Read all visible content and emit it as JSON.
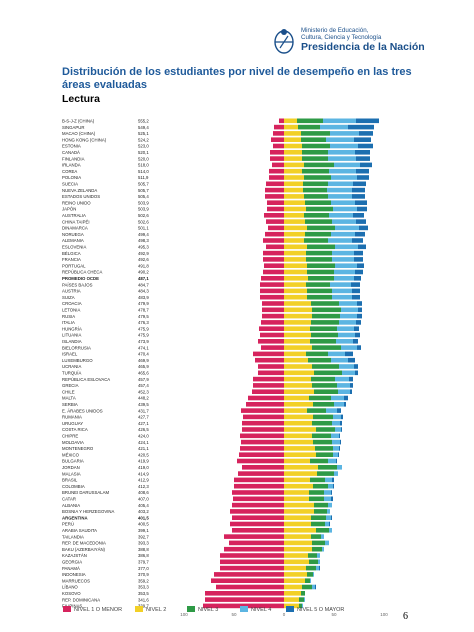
{
  "header": {
    "ministry_line1": "Ministerio de Educación,",
    "ministry_line2": "Cultura, Ciencia y Tecnología",
    "presidency": "Presidencia de la Nación"
  },
  "page_number": "6",
  "colors": {
    "nivel1": "#d6235d",
    "nivel2": "#f2d027",
    "nivel3": "#2e9a46",
    "nivel4": "#5cb5e2",
    "nivel5": "#1c6fb0",
    "highlight_label": "#000000"
  },
  "chart_data": {
    "type": "bar",
    "stacked": "diverging",
    "title": "Distribución de los estudiantes por nivel de desempeño en las tres áreas evaluadas",
    "subtitle": "Lectura",
    "xlim": [
      -100,
      100
    ],
    "x_ticks": [
      {
        "value": -100,
        "label": "100"
      },
      {
        "value": -50,
        "label": "50"
      },
      {
        "value": 0,
        "label": "0"
      },
      {
        "value": 50,
        "label": "50"
      },
      {
        "value": 100,
        "label": "100"
      }
    ],
    "legend": [
      "NIVEL 1 O MENOR",
      "NIVEL 2",
      "NIVEL 3",
      "NIVEL 4",
      "NIVEL 5 O MAYOR"
    ],
    "legend_position": "bottom",
    "rows": [
      {
        "country": "B-S-J-Z (CHINA)",
        "score": "555,2",
        "n1": 5,
        "n2": 13,
        "n3": 26,
        "n4": 33,
        "n5": 23
      },
      {
        "country": "SINGAPUR",
        "score": "549,4",
        "n1": 10,
        "n2": 14,
        "n3": 22,
        "n4": 28,
        "n5": 26
      },
      {
        "country": "MACAO (CHINA)",
        "score": "525,1",
        "n1": 11,
        "n2": 17,
        "n3": 29,
        "n4": 29,
        "n5": 14
      },
      {
        "country": "HONG KONG (CHINA)",
        "score": "524,2",
        "n1": 13,
        "n2": 17,
        "n3": 25,
        "n4": 28,
        "n5": 17
      },
      {
        "country": "ESTONIA",
        "score": "523,0",
        "n1": 11,
        "n2": 18,
        "n3": 28,
        "n4": 28,
        "n5": 15
      },
      {
        "country": "CANADÁ",
        "score": "520,1",
        "n1": 14,
        "n2": 18,
        "n3": 26,
        "n4": 27,
        "n5": 15
      },
      {
        "country": "FINLANDIA",
        "score": "520,0",
        "n1": 14,
        "n2": 18,
        "n3": 26,
        "n4": 28,
        "n5": 14
      },
      {
        "country": "IRLANDA",
        "score": "518,0",
        "n1": 12,
        "n2": 20,
        "n3": 30,
        "n4": 26,
        "n5": 12
      },
      {
        "country": "COREA",
        "score": "514,0",
        "n1": 15,
        "n2": 18,
        "n3": 27,
        "n4": 27,
        "n5": 13
      },
      {
        "country": "POLONIA",
        "score": "511,9",
        "n1": 15,
        "n2": 20,
        "n3": 27,
        "n4": 26,
        "n5": 12
      },
      {
        "country": "SUECIA",
        "score": "505,7",
        "n1": 18,
        "n2": 19,
        "n3": 25,
        "n4": 25,
        "n5": 13
      },
      {
        "country": "NUEVA ZELANDA",
        "score": "505,7",
        "n1": 19,
        "n2": 19,
        "n3": 24,
        "n4": 25,
        "n5": 13
      },
      {
        "country": "ESTADOS UNIDOS",
        "score": "505,4",
        "n1": 19,
        "n2": 20,
        "n3": 24,
        "n4": 24,
        "n5": 13
      },
      {
        "country": "REINO UNIDO",
        "score": "503,9",
        "n1": 17,
        "n2": 21,
        "n3": 26,
        "n4": 24,
        "n5": 12
      },
      {
        "country": "JAPÓN",
        "score": "503,9",
        "n1": 17,
        "n2": 22,
        "n3": 27,
        "n4": 24,
        "n5": 10
      },
      {
        "country": "AUSTRALIA",
        "score": "502,6",
        "n1": 20,
        "n2": 20,
        "n3": 25,
        "n4": 24,
        "n5": 11
      },
      {
        "country": "CHINA TAIPÉI",
        "score": "502,6",
        "n1": 18,
        "n2": 21,
        "n3": 27,
        "n4": 24,
        "n5": 10
      },
      {
        "country": "DINAMARCA",
        "score": "501,1",
        "n1": 16,
        "n2": 23,
        "n3": 28,
        "n4": 24,
        "n5": 9
      },
      {
        "country": "NORUEGA",
        "score": "499,4",
        "n1": 19,
        "n2": 21,
        "n3": 26,
        "n4": 24,
        "n5": 10
      },
      {
        "country": "ALEMANIA",
        "score": "498,3",
        "n1": 21,
        "n2": 20,
        "n3": 24,
        "n4": 24,
        "n5": 11
      },
      {
        "country": "ESLOVENIA",
        "score": "495,3",
        "n1": 18,
        "n2": 23,
        "n3": 28,
        "n4": 23,
        "n5": 8
      },
      {
        "country": "BÉLGICA",
        "score": "492,9",
        "n1": 21,
        "n2": 22,
        "n3": 26,
        "n4": 22,
        "n5": 9
      },
      {
        "country": "FRANCIA",
        "score": "492,6",
        "n1": 21,
        "n2": 22,
        "n3": 26,
        "n4": 22,
        "n5": 9
      },
      {
        "country": "PORTUGAL",
        "score": "491,8",
        "n1": 20,
        "n2": 23,
        "n3": 28,
        "n4": 22,
        "n5": 7
      },
      {
        "country": "REPÚBLICA CHECA",
        "score": "490,2",
        "n1": 21,
        "n2": 23,
        "n3": 27,
        "n4": 21,
        "n5": 8
      },
      {
        "country": "PROMEDIO OCDE",
        "score": "487,1",
        "n1": 23,
        "n2": 24,
        "n3": 26,
        "n4": 20,
        "n5": 7,
        "highlight": true
      },
      {
        "country": "PAÍSES BAJOS",
        "score": "484,7",
        "n1": 24,
        "n2": 22,
        "n3": 24,
        "n4": 21,
        "n5": 9
      },
      {
        "country": "AUSTRIA",
        "score": "484,3",
        "n1": 24,
        "n2": 23,
        "n3": 25,
        "n4": 20,
        "n5": 8
      },
      {
        "country": "SUIZA",
        "score": "483,9",
        "n1": 24,
        "n2": 23,
        "n3": 25,
        "n4": 20,
        "n5": 8
      },
      {
        "country": "CROACIA",
        "score": "479,9",
        "n1": 22,
        "n2": 27,
        "n3": 28,
        "n4": 18,
        "n5": 5
      },
      {
        "country": "LETONIA",
        "score": "478,7",
        "n1": 22,
        "n2": 28,
        "n3": 29,
        "n4": 17,
        "n5": 4
      },
      {
        "country": "RUSIA",
        "score": "479,5",
        "n1": 22,
        "n2": 28,
        "n3": 28,
        "n4": 17,
        "n5": 5
      },
      {
        "country": "ITALIA",
        "score": "476,3",
        "n1": 23,
        "n2": 27,
        "n3": 28,
        "n4": 17,
        "n5": 5
      },
      {
        "country": "HUNGRÍA",
        "score": "475,9",
        "n1": 25,
        "n2": 26,
        "n3": 27,
        "n4": 17,
        "n5": 5
      },
      {
        "country": "LITUANIA",
        "score": "475,9",
        "n1": 24,
        "n2": 27,
        "n3": 27,
        "n4": 17,
        "n5": 5
      },
      {
        "country": "ISLANDIA",
        "score": "473,9",
        "n1": 26,
        "n2": 26,
        "n3": 26,
        "n4": 17,
        "n5": 5
      },
      {
        "country": "BIELORRUSIA",
        "score": "474,1",
        "n1": 23,
        "n2": 28,
        "n3": 29,
        "n4": 16,
        "n5": 4
      },
      {
        "country": "ISRAEL",
        "score": "470,4",
        "n1": 31,
        "n2": 22,
        "n3": 22,
        "n4": 17,
        "n5": 8
      },
      {
        "country": "LUXEMBURGO",
        "score": "469,9",
        "n1": 29,
        "n2": 24,
        "n3": 23,
        "n4": 17,
        "n5": 7
      },
      {
        "country": "UCRANIA",
        "score": "465,9",
        "n1": 26,
        "n2": 28,
        "n3": 27,
        "n4": 15,
        "n5": 4
      },
      {
        "country": "TURQUÍA",
        "score": "465,6",
        "n1": 26,
        "n2": 30,
        "n3": 28,
        "n4": 13,
        "n5": 3
      },
      {
        "country": "REPÚBLICA ESLOVACA",
        "score": "457,9",
        "n1": 31,
        "n2": 27,
        "n3": 24,
        "n4": 14,
        "n5": 4
      },
      {
        "country": "GRECIA",
        "score": "457,4",
        "n1": 31,
        "n2": 28,
        "n3": 25,
        "n4": 13,
        "n5": 3
      },
      {
        "country": "CHILE",
        "score": "452,3",
        "n1": 32,
        "n2": 30,
        "n3": 24,
        "n4": 12,
        "n5": 2
      },
      {
        "country": "MALTA",
        "score": "448,2",
        "n1": 36,
        "n2": 25,
        "n3": 22,
        "n4": 13,
        "n5": 4
      },
      {
        "country": "SERBIA",
        "score": "439,5",
        "n1": 38,
        "n2": 29,
        "n3": 21,
        "n4": 10,
        "n5": 2
      },
      {
        "country": "E. ÁRABES UNIDOS",
        "score": "431,7",
        "n1": 43,
        "n2": 23,
        "n3": 19,
        "n4": 11,
        "n5": 4
      },
      {
        "country": "RUMANIA",
        "score": "427,7",
        "n1": 41,
        "n2": 29,
        "n3": 20,
        "n4": 8,
        "n5": 2
      },
      {
        "country": "URUGUAY",
        "score": "427,1",
        "n1": 42,
        "n2": 28,
        "n3": 20,
        "n4": 8,
        "n5": 2
      },
      {
        "country": "COSTA RICA",
        "score": "426,5",
        "n1": 42,
        "n2": 32,
        "n3": 19,
        "n4": 6,
        "n5": 1
      },
      {
        "country": "CHIPRE",
        "score": "424,0",
        "n1": 44,
        "n2": 28,
        "n3": 19,
        "n4": 8,
        "n5": 1
      },
      {
        "country": "MOLDAVIA",
        "score": "424,1",
        "n1": 43,
        "n2": 29,
        "n3": 19,
        "n4": 8,
        "n5": 1
      },
      {
        "country": "MONTENEGRO",
        "score": "421,1",
        "n1": 44,
        "n2": 31,
        "n3": 18,
        "n4": 6,
        "n5": 1
      },
      {
        "country": "MÉXICO",
        "score": "420,5",
        "n1": 45,
        "n2": 32,
        "n3": 17,
        "n4": 5,
        "n5": 1
      },
      {
        "country": "BULGARIA",
        "score": "419,9",
        "n1": 47,
        "n2": 26,
        "n3": 18,
        "n4": 8,
        "n5": 1
      },
      {
        "country": "JORDAN",
        "score": "419,0",
        "n1": 42,
        "n2": 34,
        "n3": 19,
        "n4": 5,
        "n5": 0
      },
      {
        "country": "MALASIA",
        "score": "414,9",
        "n1": 46,
        "n2": 33,
        "n3": 17,
        "n4": 4,
        "n5": 0
      },
      {
        "country": "BRASIL",
        "score": "412,9",
        "n1": 50,
        "n2": 26,
        "n3": 15,
        "n4": 7,
        "n5": 2
      },
      {
        "country": "COLOMBIA",
        "score": "412,3",
        "n1": 50,
        "n2": 29,
        "n3": 15,
        "n4": 5,
        "n5": 1
      },
      {
        "country": "BRUNEI DARUSSALAM",
        "score": "408,6",
        "n1": 52,
        "n2": 25,
        "n3": 15,
        "n4": 7,
        "n5": 1
      },
      {
        "country": "CATAR",
        "score": "407,0",
        "n1": 51,
        "n2": 25,
        "n3": 15,
        "n4": 7,
        "n5": 2
      },
      {
        "country": "ALBANIA",
        "score": "405,4",
        "n1": 52,
        "n2": 30,
        "n3": 14,
        "n4": 4,
        "n5": 0
      },
      {
        "country": "BOSNIA Y HERZEGOVINA",
        "score": "403,2",
        "n1": 54,
        "n2": 30,
        "n3": 13,
        "n4": 3,
        "n5": 0
      },
      {
        "country": "ARGENTINA",
        "score": "401,5",
        "n1": 52,
        "n2": 27,
        "n3": 15,
        "n4": 5,
        "n5": 1,
        "highlight": true
      },
      {
        "country": "PERÚ",
        "score": "400,5",
        "n1": 54,
        "n2": 27,
        "n3": 14,
        "n4": 4,
        "n5": 1
      },
      {
        "country": "ARABIA SAUDITA",
        "score": "399,1",
        "n1": 52,
        "n2": 32,
        "n3": 13,
        "n4": 3,
        "n5": 0
      },
      {
        "country": "TAILANDIA",
        "score": "392,7",
        "n1": 60,
        "n2": 27,
        "n3": 10,
        "n4": 3,
        "n5": 0
      },
      {
        "country": "REP. DE MACEDONIA",
        "score": "393,3",
        "n1": 55,
        "n2": 28,
        "n3": 13,
        "n4": 4,
        "n5": 0
      },
      {
        "country": "BAKU (AZERBAIYÁN)",
        "score": "388,8",
        "n1": 60,
        "n2": 28,
        "n3": 10,
        "n4": 2,
        "n5": 0
      },
      {
        "country": "KAZAJSTÁN",
        "score": "386,8",
        "n1": 64,
        "n2": 24,
        "n3": 9,
        "n4": 3,
        "n5": 0
      },
      {
        "country": "GEORGIA",
        "score": "379,7",
        "n1": 64,
        "n2": 25,
        "n3": 9,
        "n4": 2,
        "n5": 0
      },
      {
        "country": "PANAMÁ",
        "score": "377,0",
        "n1": 64,
        "n2": 22,
        "n3": 10,
        "n4": 3,
        "n5": 1
      },
      {
        "country": "INDONESIA",
        "score": "370,9",
        "n1": 70,
        "n2": 23,
        "n3": 6,
        "n4": 1,
        "n5": 0
      },
      {
        "country": "MARRUECOS",
        "score": "359,2",
        "n1": 73,
        "n2": 21,
        "n3": 5,
        "n4": 1,
        "n5": 0
      },
      {
        "country": "LÍBANO",
        "score": "353,3",
        "n1": 68,
        "n2": 18,
        "n3": 10,
        "n4": 3,
        "n5": 1
      },
      {
        "country": "KOSOVO",
        "score": "353,5",
        "n1": 79,
        "n2": 17,
        "n3": 4,
        "n4": 0,
        "n5": 0
      },
      {
        "country": "REP. DOMINICANA",
        "score": "341,6",
        "n1": 79,
        "n2": 15,
        "n3": 5,
        "n4": 1,
        "n5": 0
      },
      {
        "country": "FILIPINAS",
        "score": "339,7",
        "n1": 81,
        "n2": 15,
        "n3": 3,
        "n4": 1,
        "n5": 0
      }
    ]
  }
}
